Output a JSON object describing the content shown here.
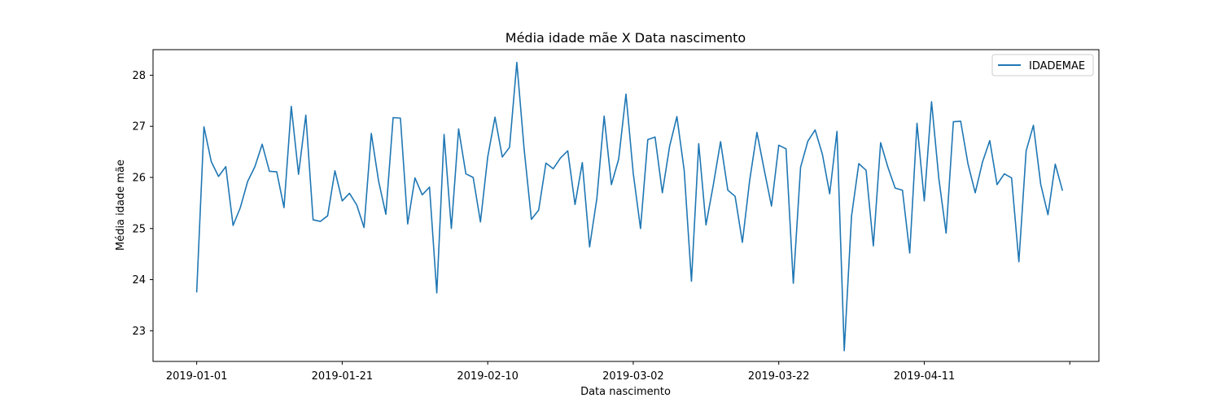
{
  "chart_data": {
    "type": "line",
    "title": "Média idade mãe X Data nascimento",
    "xlabel": "Data nascimento",
    "ylabel": "Média idade mãe",
    "x_start": "2019-01-01",
    "x_end": "2019-04-30",
    "xlim": [
      "2018-12-26",
      "2019-05-05"
    ],
    "ylim": [
      22.4,
      28.5
    ],
    "x_ticks": [
      "2019-01-01",
      "2019-01-21",
      "2019-02-10",
      "2019-03-02",
      "2019-03-22",
      "2019-04-11",
      "2019-05-01"
    ],
    "x_tick_labels": [
      "2019-01-01",
      "2019-01-21",
      "2019-02-10",
      "2019-03-02",
      "2019-03-22",
      "2019-04-11",
      ""
    ],
    "y_ticks": [
      23,
      24,
      25,
      26,
      27,
      28
    ],
    "legend_position": "top-right",
    "grid": false,
    "series": [
      {
        "name": "IDADEMAE",
        "color": "#1f77b4",
        "values": [
          23.75,
          26.99,
          26.31,
          26.02,
          26.21,
          25.06,
          25.41,
          25.92,
          26.21,
          26.65,
          26.12,
          26.11,
          25.41,
          27.39,
          26.06,
          27.22,
          25.17,
          25.14,
          25.25,
          26.13,
          25.54,
          25.69,
          25.46,
          25.02,
          26.86,
          25.93,
          25.28,
          27.17,
          27.16,
          25.09,
          25.99,
          25.66,
          25.81,
          23.74,
          26.84,
          25.0,
          26.95,
          26.07,
          26.0,
          25.13,
          26.4,
          27.18,
          26.4,
          26.59,
          28.25,
          26.56,
          25.18,
          25.36,
          26.28,
          26.17,
          26.38,
          26.52,
          25.47,
          26.29,
          24.64,
          25.59,
          27.2,
          25.86,
          26.36,
          27.63,
          26.08,
          25.0,
          26.74,
          26.79,
          25.7,
          26.61,
          27.19,
          26.14,
          23.97,
          26.66,
          25.07,
          25.85,
          26.7,
          25.75,
          25.63,
          24.73,
          25.94,
          26.88,
          26.15,
          25.44,
          26.63,
          26.56,
          23.93,
          26.2,
          26.71,
          26.93,
          26.45,
          25.68,
          26.9,
          22.61,
          25.24,
          26.27,
          26.14,
          24.66,
          26.68,
          26.2,
          25.79,
          25.75,
          24.52,
          27.06,
          25.54,
          27.48,
          25.98,
          24.91,
          27.09,
          27.1,
          26.27,
          25.7,
          26.3,
          26.72,
          25.86,
          26.07,
          25.99,
          24.35,
          26.52,
          27.02,
          25.87,
          25.27,
          26.26,
          25.74
        ]
      }
    ]
  }
}
